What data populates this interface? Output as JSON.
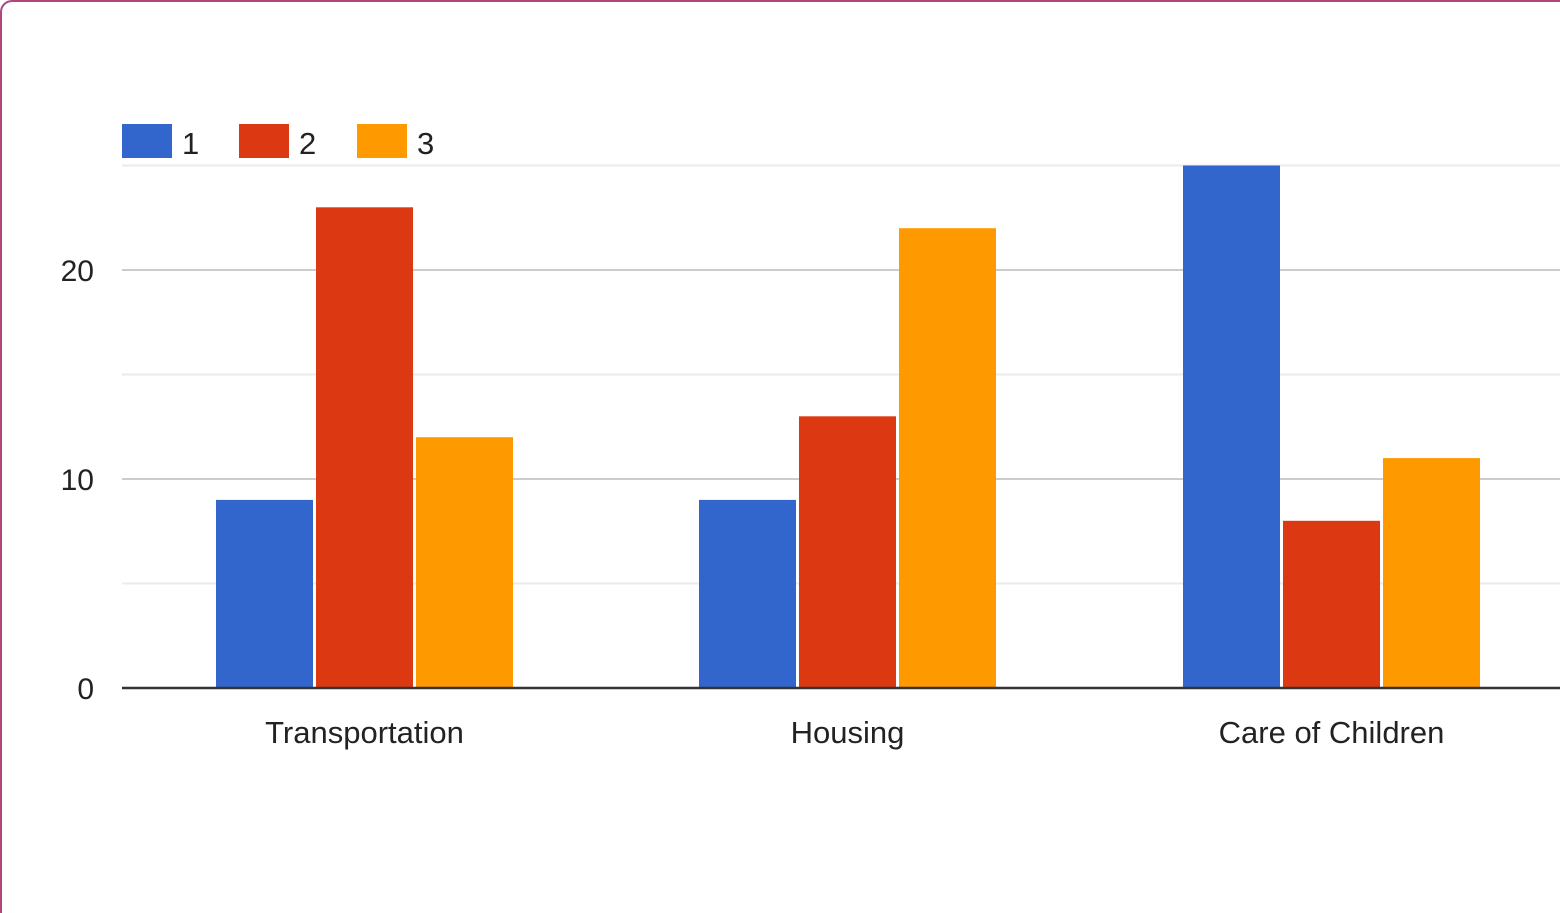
{
  "chart_data": {
    "type": "bar",
    "categories": [
      "Transportation",
      "Housing",
      "Care of Children"
    ],
    "series": [
      {
        "name": "1",
        "color": "#3366cc",
        "values": [
          9,
          9,
          25
        ]
      },
      {
        "name": "2",
        "color": "#dc3912",
        "values": [
          23,
          13,
          8
        ]
      },
      {
        "name": "3",
        "color": "#ff9900",
        "values": [
          12,
          22,
          11
        ]
      }
    ],
    "ylim": [
      0,
      25
    ],
    "yticks": [
      0,
      10,
      20
    ],
    "minor_gridlines": [
      5,
      15,
      25
    ],
    "grid": true,
    "legend": "top-left",
    "title": "",
    "xlabel": "",
    "ylabel": ""
  }
}
